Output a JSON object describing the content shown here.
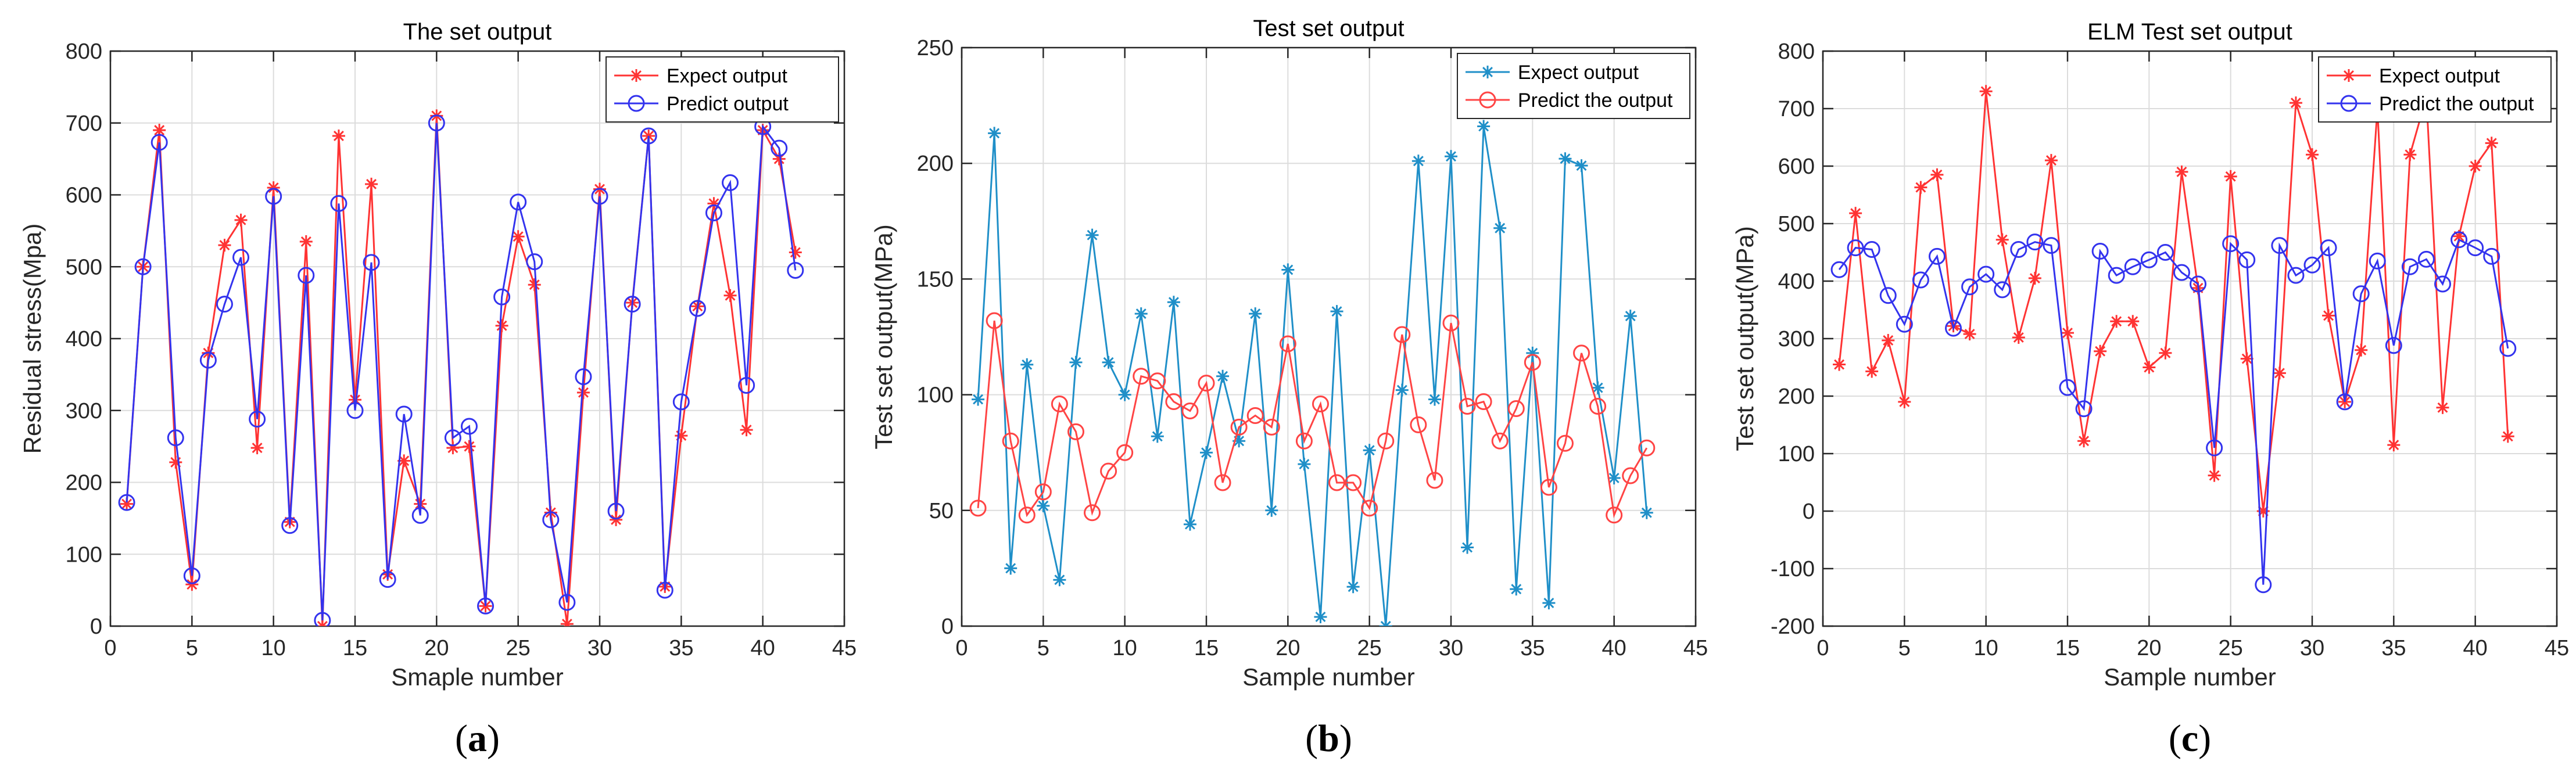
{
  "chart_data": [
    {
      "type": "line",
      "panel_label": "a",
      "title": "The set output",
      "xlabel": "Smaple number",
      "ylabel": "Residual stress(Mpa)",
      "xlim": [
        0,
        45
      ],
      "ylim": [
        0,
        800
      ],
      "xticks": [
        0,
        5,
        10,
        15,
        20,
        25,
        30,
        35,
        40,
        45
      ],
      "yticks": [
        0,
        100,
        200,
        300,
        400,
        500,
        600,
        700,
        800
      ],
      "grid": true,
      "legend_position": "top-right",
      "x": [
        1,
        2,
        3,
        4,
        5,
        6,
        7,
        8,
        9,
        10,
        11,
        12,
        13,
        14,
        15,
        16,
        17,
        18,
        19,
        20,
        21,
        22,
        23,
        24,
        25,
        26,
        27,
        28,
        29,
        30,
        31,
        32,
        33,
        34,
        35,
        36,
        37,
        38,
        39,
        40,
        41,
        42
      ],
      "series": [
        {
          "name": "Expect output",
          "color": "#ff3333",
          "marker": "star",
          "values": [
            170,
            500,
            690,
            228,
            58,
            380,
            530,
            565,
            248,
            610,
            145,
            535,
            0,
            682,
            315,
            615,
            72,
            230,
            170,
            710,
            248,
            250,
            28,
            418,
            542,
            475,
            158,
            3,
            325,
            608,
            148,
            450,
            682,
            55,
            265,
            445,
            588,
            460,
            273,
            690,
            650,
            520
          ]
        },
        {
          "name": "Predict output",
          "color": "#3333ee",
          "marker": "circle",
          "values": [
            172,
            500,
            673,
            262,
            70,
            370,
            448,
            513,
            288,
            598,
            140,
            488,
            8,
            588,
            300,
            506,
            65,
            295,
            154,
            700,
            262,
            278,
            28,
            458,
            590,
            507,
            148,
            33,
            347,
            598,
            160,
            448,
            682,
            50,
            312,
            442,
            575,
            617,
            335,
            695,
            665,
            495
          ]
        }
      ]
    },
    {
      "type": "line",
      "panel_label": "b",
      "title": "Test set output",
      "xlabel": "Sample number",
      "ylabel": "Test set output(MPa)",
      "xlim": [
        0,
        45
      ],
      "ylim": [
        0,
        250
      ],
      "xticks": [
        0,
        5,
        10,
        15,
        20,
        25,
        30,
        35,
        40,
        45
      ],
      "yticks": [
        0,
        50,
        100,
        150,
        200,
        250
      ],
      "grid": true,
      "legend_position": "top-right",
      "x": [
        1,
        2,
        3,
        4,
        5,
        6,
        7,
        8,
        9,
        10,
        11,
        12,
        13,
        14,
        15,
        16,
        17,
        18,
        19,
        20,
        21,
        22,
        23,
        24,
        25,
        26,
        27,
        28,
        29,
        30,
        31,
        32,
        33,
        34,
        35,
        36,
        37,
        38,
        39,
        40,
        41,
        42
      ],
      "series": [
        {
          "name": "Expect output",
          "color": "#1f8fc8",
          "marker": "star",
          "values": [
            98,
            213,
            25,
            113,
            52,
            20,
            114,
            169,
            114,
            100,
            135,
            82,
            140,
            44,
            75,
            108,
            80,
            135,
            50,
            154,
            70,
            4,
            136,
            17,
            76,
            0,
            102,
            201,
            98,
            203,
            34,
            216,
            172,
            16,
            118,
            10,
            202,
            199,
            103,
            64,
            134,
            49
          ]
        },
        {
          "name": "Predict the output",
          "color": "#ff4444",
          "marker": "circle",
          "values": [
            51,
            132,
            80,
            48,
            58,
            96,
            84,
            49,
            67,
            75,
            108,
            106,
            97,
            93,
            105,
            62,
            86,
            91,
            86,
            122,
            80,
            96,
            62,
            62,
            51,
            80,
            126,
            87,
            63,
            131,
            95,
            97,
            80,
            94,
            114,
            60,
            79,
            118,
            95,
            48,
            65,
            77
          ]
        }
      ]
    },
    {
      "type": "line",
      "panel_label": "c",
      "title": "ELM Test set output",
      "xlabel": "Sample number",
      "ylabel": "Test set output(MPa)",
      "xlim": [
        0,
        45
      ],
      "ylim": [
        -200,
        800
      ],
      "xticks": [
        0,
        5,
        10,
        15,
        20,
        25,
        30,
        35,
        40,
        45
      ],
      "yticks": [
        -200,
        -100,
        0,
        100,
        200,
        300,
        400,
        500,
        600,
        700,
        800
      ],
      "grid": true,
      "legend_position": "top-right",
      "x": [
        1,
        2,
        3,
        4,
        5,
        6,
        7,
        8,
        9,
        10,
        11,
        12,
        13,
        14,
        15,
        16,
        17,
        18,
        19,
        20,
        21,
        22,
        23,
        24,
        25,
        26,
        27,
        28,
        29,
        30,
        31,
        32,
        33,
        34,
        35,
        36,
        37,
        38,
        39,
        40,
        41,
        42
      ],
      "series": [
        {
          "name": "Expect output",
          "color": "#ff3333",
          "marker": "star",
          "values": [
            255,
            518,
            243,
            297,
            190,
            563,
            585,
            322,
            308,
            730,
            472,
            302,
            405,
            610,
            310,
            122,
            278,
            330,
            330,
            250,
            275,
            590,
            388,
            62,
            582,
            265,
            0,
            240,
            710,
            620,
            340,
            190,
            280,
            700,
            115,
            620,
            720,
            180,
            478,
            600,
            640,
            130
          ]
        },
        {
          "name": "Predict the output",
          "color": "#3333ee",
          "marker": "circle",
          "values": [
            420,
            458,
            455,
            375,
            325,
            402,
            443,
            318,
            390,
            412,
            385,
            455,
            468,
            462,
            215,
            178,
            452,
            410,
            425,
            437,
            450,
            415,
            395,
            110,
            465,
            437,
            -128,
            462,
            410,
            428,
            458,
            190,
            378,
            435,
            288,
            425,
            438,
            395,
            472,
            458,
            443,
            283
          ]
        }
      ]
    }
  ]
}
